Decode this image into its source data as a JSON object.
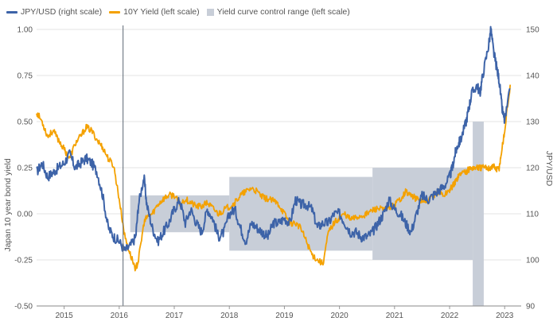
{
  "chart_data": {
    "type": "line",
    "legend_position": "top-left",
    "grid": true,
    "xlabel": "",
    "ylabel": "Japan 10 year bond yield",
    "y2label": "JPY/USD",
    "x_range": [
      2014.5,
      2023.3
    ],
    "ylim": [
      -0.5,
      1.0
    ],
    "y2lim": [
      90,
      150
    ],
    "x_ticks": [
      2015,
      2016,
      2017,
      2018,
      2019,
      2020,
      2021,
      2022,
      2023
    ],
    "y_ticks": [
      "1.00",
      "0.75",
      "0.50",
      "0.25",
      "0.00",
      "-0.25",
      "-0.50"
    ],
    "y2_ticks": [
      150,
      140,
      130,
      120,
      110,
      100,
      90
    ],
    "event_line_x": 2016.07,
    "colors": {
      "jpyusd": "#3d63a8",
      "yield": "#f4a100",
      "range": "#c8ced8",
      "grid": "#e3e3e3",
      "axis_text": "#555555"
    },
    "yield_control_range": {
      "name": "Yield curve control range (left scale)",
      "bands": [
        {
          "from": 2016.2,
          "to": 2018.0,
          "low": -0.1,
          "high": 0.1
        },
        {
          "from": 2018.0,
          "to": 2020.6,
          "low": -0.2,
          "high": 0.2
        },
        {
          "from": 2020.6,
          "to": 2022.42,
          "low": -0.25,
          "high": 0.25
        },
        {
          "from": 2022.42,
          "to": 2022.62,
          "low": -0.5,
          "high": 0.5
        }
      ]
    },
    "series": [
      {
        "name": "JPY/USD (right scale)",
        "axis": "right",
        "x": [
          2014.5,
          2014.6,
          2014.7,
          2014.8,
          2014.9,
          2015.0,
          2015.1,
          2015.2,
          2015.3,
          2015.4,
          2015.5,
          2015.6,
          2015.7,
          2015.8,
          2015.9,
          2016.0,
          2016.1,
          2016.2,
          2016.3,
          2016.35,
          2016.45,
          2016.5,
          2016.6,
          2016.7,
          2016.8,
          2016.9,
          2017.0,
          2017.1,
          2017.2,
          2017.3,
          2017.4,
          2017.5,
          2017.6,
          2017.7,
          2017.8,
          2017.9,
          2018.0,
          2018.1,
          2018.2,
          2018.3,
          2018.4,
          2018.5,
          2018.6,
          2018.7,
          2018.8,
          2018.9,
          2019.0,
          2019.1,
          2019.2,
          2019.3,
          2019.4,
          2019.5,
          2019.6,
          2019.7,
          2019.8,
          2019.9,
          2020.0,
          2020.1,
          2020.2,
          2020.3,
          2020.4,
          2020.5,
          2020.6,
          2020.7,
          2020.8,
          2020.9,
          2021.0,
          2021.1,
          2021.2,
          2021.3,
          2021.4,
          2021.5,
          2021.6,
          2021.7,
          2021.8,
          2021.9,
          2022.0,
          2022.05,
          2022.1,
          2022.15,
          2022.2,
          2022.3,
          2022.35,
          2022.4,
          2022.5,
          2022.55,
          2022.6,
          2022.7,
          2022.75,
          2022.8,
          2022.85,
          2022.9,
          2022.95,
          2023.0,
          2023.1
        ],
        "values": [
          119,
          121,
          118,
          119,
          120,
          121,
          123,
          120,
          121,
          122,
          121,
          119,
          114,
          107,
          105,
          104,
          102,
          103,
          105,
          112,
          118,
          112,
          107,
          104,
          106,
          108,
          111,
          113,
          108,
          111,
          108,
          106,
          111,
          109,
          105,
          106,
          110,
          111,
          107,
          104,
          108,
          107,
          106,
          105,
          108,
          108,
          109,
          108,
          113,
          112,
          112,
          111,
          107,
          108,
          108,
          110,
          110,
          108,
          106,
          106,
          105,
          105,
          106,
          108,
          110,
          113,
          111,
          110,
          108,
          106,
          110,
          114,
          113,
          114,
          115,
          116,
          118,
          120,
          123,
          125,
          126,
          130,
          133,
          136,
          138,
          136,
          140,
          146,
          150,
          145,
          142,
          139,
          133,
          130,
          137
        ]
      },
      {
        "name": "10Y Yield (left scale)",
        "axis": "left",
        "x": [
          2014.5,
          2014.6,
          2014.7,
          2014.8,
          2014.9,
          2015.0,
          2015.1,
          2015.2,
          2015.3,
          2015.4,
          2015.5,
          2015.6,
          2015.7,
          2015.8,
          2015.9,
          2016.0,
          2016.1,
          2016.2,
          2016.3,
          2016.35,
          2016.45,
          2016.5,
          2016.6,
          2016.7,
          2016.8,
          2016.9,
          2017.0,
          2017.1,
          2017.2,
          2017.3,
          2017.4,
          2017.5,
          2017.6,
          2017.7,
          2017.8,
          2017.9,
          2018.0,
          2018.1,
          2018.2,
          2018.3,
          2018.4,
          2018.5,
          2018.6,
          2018.7,
          2018.8,
          2018.9,
          2019.0,
          2019.1,
          2019.2,
          2019.3,
          2019.4,
          2019.5,
          2019.6,
          2019.7,
          2019.8,
          2019.9,
          2020.0,
          2020.1,
          2020.2,
          2020.3,
          2020.4,
          2020.5,
          2020.6,
          2020.7,
          2020.8,
          2020.9,
          2021.0,
          2021.1,
          2021.2,
          2021.3,
          2021.4,
          2021.5,
          2021.6,
          2021.7,
          2021.8,
          2021.9,
          2022.0,
          2022.05,
          2022.1,
          2022.15,
          2022.2,
          2022.3,
          2022.35,
          2022.4,
          2022.5,
          2022.55,
          2022.6,
          2022.7,
          2022.75,
          2022.8,
          2022.85,
          2022.9,
          2022.95,
          2023.0,
          2023.1
        ],
        "values": [
          0.55,
          0.5,
          0.42,
          0.45,
          0.4,
          0.35,
          0.3,
          0.38,
          0.42,
          0.47,
          0.45,
          0.4,
          0.36,
          0.3,
          0.26,
          0.08,
          -0.12,
          -0.22,
          -0.3,
          -0.25,
          -0.05,
          -0.02,
          0.0,
          0.05,
          0.08,
          0.1,
          0.1,
          0.05,
          0.08,
          0.06,
          0.04,
          0.04,
          0.06,
          0.03,
          0.0,
          0.02,
          0.04,
          0.06,
          0.1,
          0.12,
          0.14,
          0.12,
          0.09,
          0.08,
          0.07,
          0.05,
          0.0,
          -0.05,
          -0.05,
          -0.08,
          -0.15,
          -0.22,
          -0.25,
          -0.27,
          -0.1,
          -0.05,
          -0.02,
          0.0,
          -0.03,
          -0.02,
          -0.01,
          0.0,
          0.02,
          0.03,
          0.02,
          0.03,
          0.05,
          0.08,
          0.12,
          0.1,
          0.08,
          0.07,
          0.06,
          0.1,
          0.12,
          0.1,
          0.13,
          0.15,
          0.17,
          0.2,
          0.22,
          0.23,
          0.24,
          0.25,
          0.25,
          0.25,
          0.25,
          0.25,
          0.25,
          0.26,
          0.24,
          0.25,
          0.35,
          0.45,
          0.7
        ]
      }
    ]
  }
}
